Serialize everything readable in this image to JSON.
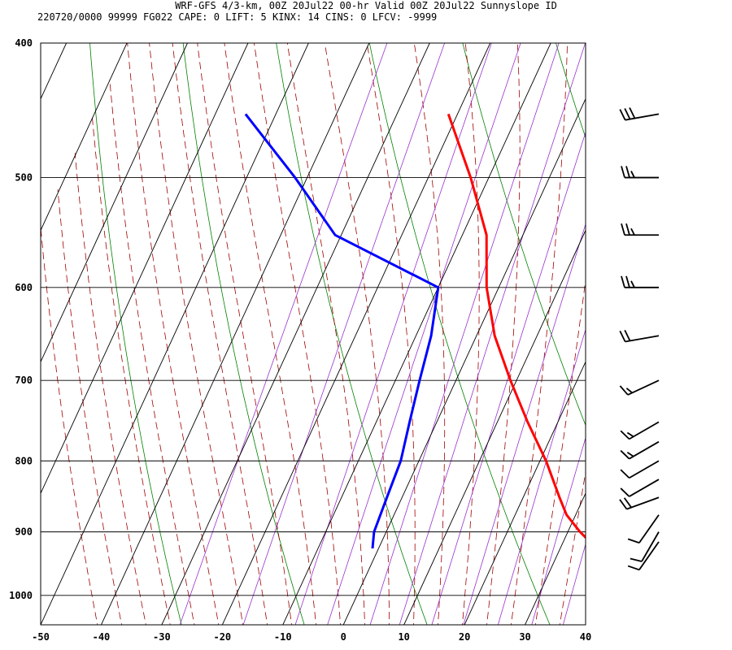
{
  "header": {
    "line1": "WRF-GFS 4/3-km, 00Z 20Jul22 00-hr Valid 00Z 20Jul22 Sunnyslope ID",
    "line2": "220720/0000 99999  FG022   CAPE:     0 LIFT:     5 KINX:    14 CINS:     0 LFCV: -9999"
  },
  "chart_data": {
    "type": "line",
    "title": "WRF-GFS 4/3-km, 00Z 20Jul22 00-hr Valid 00Z 20Jul22 Sunnyslope ID",
    "subtitle": "220720/0000 99999  FG022   CAPE:     0 LIFT:     5 KINX:    14 CINS:     0 LFCV: -9999",
    "x_axis": {
      "ticks": [
        -50,
        -40,
        -30,
        -20,
        -10,
        0,
        10,
        20,
        30,
        40
      ],
      "tick_labels": [
        "-50",
        "-40",
        "-30",
        "-20",
        "-10",
        "0",
        "10",
        "20",
        "30",
        "40"
      ],
      "range": [
        -50,
        40
      ]
    },
    "y_axis": {
      "scale": "log-pressure-reversed",
      "ticks": [
        400,
        500,
        600,
        700,
        800,
        900,
        1000
      ],
      "tick_labels": [
        "400",
        "500",
        "600",
        "700",
        "800",
        "900",
        "1000"
      ],
      "range": [
        1050,
        400
      ]
    },
    "grid": true,
    "background_lines": {
      "dry_adiabats": {
        "color": "#008000",
        "style": "solid"
      },
      "moist_adiabats": {
        "color": "#a00000",
        "style": "dashed"
      },
      "mixing_ratio": {
        "color": "#9932cc",
        "style": "solid"
      }
    },
    "series": [
      {
        "color": "#ff0000",
        "values": [
          {
            "p": 925,
            "t": 36
          },
          {
            "p": 900,
            "t": 32
          },
          {
            "p": 875,
            "t": 28.5
          },
          {
            "p": 850,
            "t": 26
          },
          {
            "p": 800,
            "t": 21
          },
          {
            "p": 750,
            "t": 15
          },
          {
            "p": 700,
            "t": 9
          },
          {
            "p": 650,
            "t": 3
          },
          {
            "p": 600,
            "t": -2
          },
          {
            "p": 550,
            "t": -6
          },
          {
            "p": 500,
            "t": -13
          },
          {
            "p": 450,
            "t": -21.5
          }
        ]
      },
      {
        "color": "#0000ff",
        "values": [
          {
            "p": 925,
            "t": -1
          },
          {
            "p": 900,
            "t": -2
          },
          {
            "p": 850,
            "t": -2.5
          },
          {
            "p": 800,
            "t": -3
          },
          {
            "p": 750,
            "t": -4.5
          },
          {
            "p": 700,
            "t": -6
          },
          {
            "p": 650,
            "t": -7.5
          },
          {
            "p": 600,
            "t": -10
          },
          {
            "p": 550,
            "t": -31
          },
          {
            "p": 500,
            "t": -42
          },
          {
            "p": 450,
            "t": -55
          }
        ]
      }
    ],
    "wind_barbs": [
      {
        "p": 450,
        "dir": 260,
        "spd": 30
      },
      {
        "p": 500,
        "dir": 270,
        "spd": 25
      },
      {
        "p": 550,
        "dir": 270,
        "spd": 25
      },
      {
        "p": 600,
        "dir": 270,
        "spd": 25
      },
      {
        "p": 650,
        "dir": 260,
        "spd": 20
      },
      {
        "p": 700,
        "dir": 245,
        "spd": 15
      },
      {
        "p": 750,
        "dir": 240,
        "spd": 15
      },
      {
        "p": 775,
        "dir": 240,
        "spd": 15
      },
      {
        "p": 800,
        "dir": 240,
        "spd": 10
      },
      {
        "p": 825,
        "dir": 240,
        "spd": 10
      },
      {
        "p": 850,
        "dir": 250,
        "spd": 20
      },
      {
        "p": 875,
        "dir": 215,
        "spd": 10
      },
      {
        "p": 900,
        "dir": 210,
        "spd": 10
      },
      {
        "p": 915,
        "dir": 215,
        "spd": 10
      }
    ],
    "colors": {
      "temperature": "#ff0000",
      "dewpoint": "#0000ff",
      "barbs": "#000000",
      "dry_adiabat": "#008000",
      "moist_adiabat": "#a00000",
      "mixing_ratio": "#9932cc"
    }
  }
}
